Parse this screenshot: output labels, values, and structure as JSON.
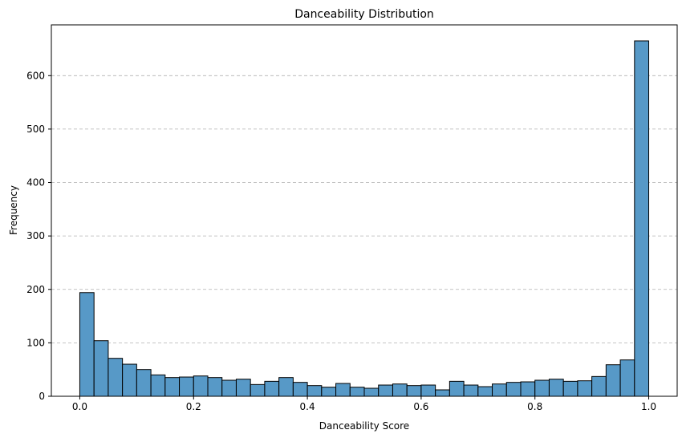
{
  "chart_data": {
    "type": "bar",
    "title": "Danceability Distribution",
    "xlabel": "Danceability Score",
    "ylabel": "Frequency",
    "xlim": [
      -0.05,
      1.05
    ],
    "ylim": [
      0,
      695
    ],
    "x_ticks": [
      0.0,
      0.2,
      0.4,
      0.6,
      0.8,
      1.0
    ],
    "x_tick_labels": [
      "0.0",
      "0.2",
      "0.4",
      "0.6",
      "0.8",
      "1.0"
    ],
    "y_ticks": [
      0,
      100,
      200,
      300,
      400,
      500,
      600
    ],
    "y_tick_labels": [
      "0",
      "100",
      "200",
      "300",
      "400",
      "500",
      "600"
    ],
    "bins": 40,
    "bin_range": [
      0,
      1
    ],
    "values": [
      194,
      104,
      71,
      60,
      50,
      40,
      35,
      36,
      38,
      35,
      30,
      32,
      22,
      28,
      35,
      26,
      20,
      17,
      24,
      17,
      15,
      21,
      23,
      20,
      21,
      12,
      28,
      21,
      18,
      23,
      26,
      27,
      30,
      32,
      28,
      29,
      37,
      59,
      68,
      665
    ],
    "grid": "y-dashed",
    "bar_color": "#5799c7",
    "edge_color": "#000000",
    "grid_color": "#b0b0b0"
  }
}
